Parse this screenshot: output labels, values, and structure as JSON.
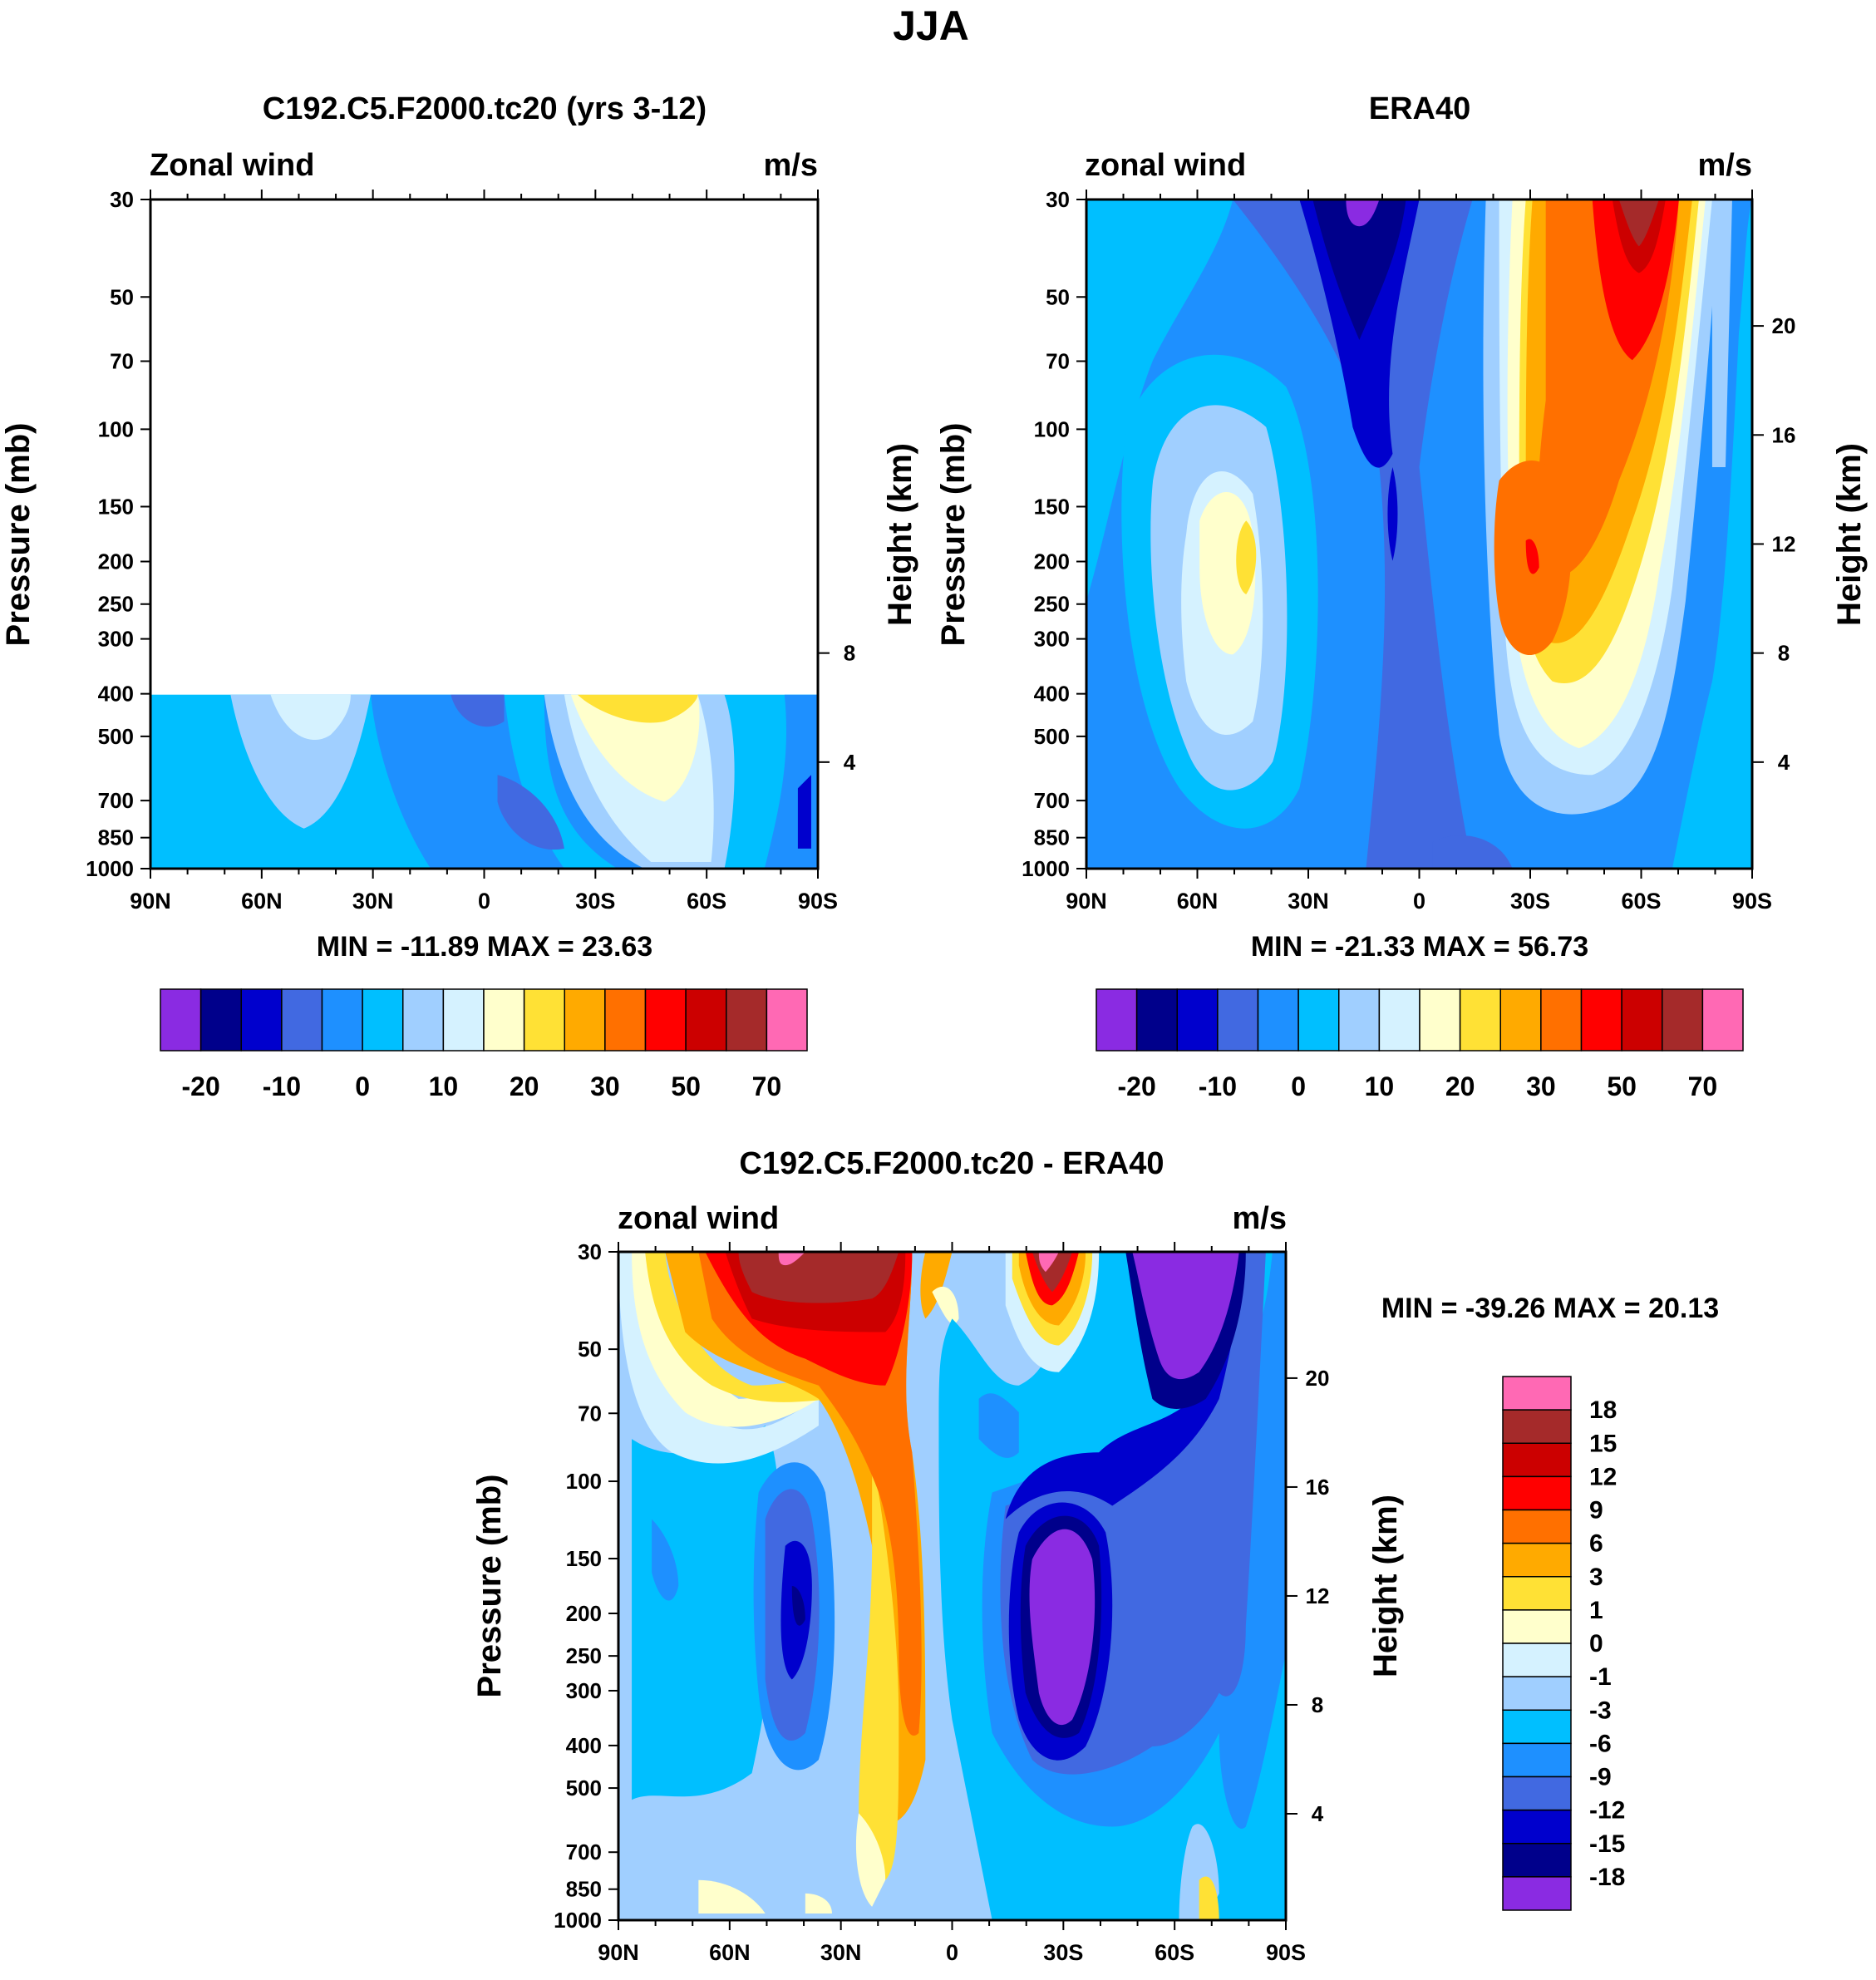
{
  "figure_title": "JJA",
  "cbar_colors": [
    "#8A2BE2",
    "#00008B",
    "#0000CD",
    "#4169E1",
    "#1E90FF",
    "#00BFFF",
    "#A0CFFF",
    "#D5F2FF",
    "#FFFFCC",
    "#FFE135",
    "#FFAA00",
    "#FF7000",
    "#FF0000",
    "#CC0000",
    "#A52A2A",
    "#FF69B4"
  ],
  "chart_data": [
    {
      "id": "panel-model",
      "type": "heatmap",
      "title": "C192.C5.F2000.tc20 (yrs 3-12)",
      "left_label": "Zonal wind",
      "right_label": "m/s",
      "ylabel": "Pressure (mb)",
      "y2label": "Height (km)",
      "xticks": [
        "90N",
        "60N",
        "30N",
        "0",
        "30S",
        "60S",
        "90S"
      ],
      "yticks": [
        "30",
        "50",
        "70",
        "100",
        "150",
        "200",
        "250",
        "300",
        "400",
        "500",
        "700",
        "850",
        "1000"
      ],
      "y2ticks": [
        "8",
        "4"
      ],
      "stats": "MIN = -11.89  MAX =  23.63",
      "data_top_mb": 400,
      "colorbar_labels": [
        "-20",
        "-10",
        "0",
        "10",
        "20",
        "30",
        "50",
        "70"
      ]
    },
    {
      "id": "panel-obs",
      "type": "heatmap",
      "title": "ERA40",
      "left_label": "zonal wind",
      "right_label": "m/s",
      "ylabel": "Pressure (mb)",
      "y2label": "Height (km)",
      "xticks": [
        "90N",
        "60N",
        "30N",
        "0",
        "30S",
        "60S",
        "90S"
      ],
      "yticks": [
        "30",
        "50",
        "70",
        "100",
        "150",
        "200",
        "250",
        "300",
        "400",
        "500",
        "700",
        "850",
        "1000"
      ],
      "y2ticks": [
        "20",
        "16",
        "12",
        "8",
        "4"
      ],
      "stats": "MIN = -21.33  MAX =  56.73",
      "colorbar_labels": [
        "-20",
        "-10",
        "0",
        "10",
        "20",
        "30",
        "50",
        "70"
      ]
    },
    {
      "id": "panel-diff",
      "type": "heatmap",
      "title": "C192.C5.F2000.tc20 - ERA40",
      "left_label": "zonal wind",
      "right_label": "m/s",
      "ylabel": "Pressure (mb)",
      "y2label": "Height (km)",
      "xticks": [
        "90N",
        "60N",
        "30N",
        "0",
        "30S",
        "60S",
        "90S"
      ],
      "yticks": [
        "30",
        "50",
        "70",
        "100",
        "150",
        "200",
        "250",
        "300",
        "400",
        "500",
        "700",
        "850",
        "1000"
      ],
      "y2ticks": [
        "20",
        "16",
        "12",
        "8",
        "4"
      ],
      "stats": "MIN = -39.26  MAX =  20.13",
      "colorbar_labels": [
        "18",
        "15",
        "12",
        "9",
        "6",
        "3",
        "1",
        "0",
        "-1",
        "-3",
        "-6",
        "-9",
        "-12",
        "-15",
        "-18"
      ]
    }
  ]
}
